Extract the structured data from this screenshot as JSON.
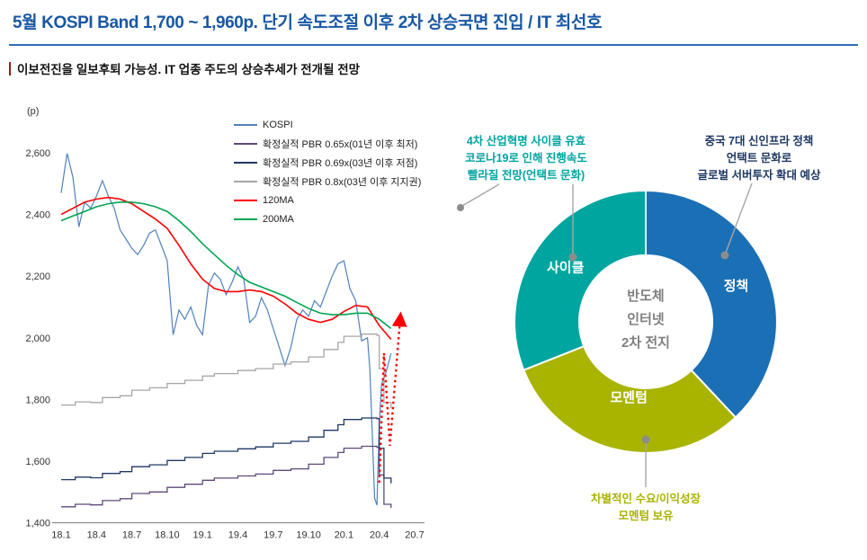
{
  "header": {
    "title": "5월 KOSPI Band 1,700 ~ 1,960p. 단기 속도조절 이후 2차 상승국면 진입 / IT 최선호",
    "subtitle": "이보전진을 일보후퇴 가능성. IT 업종 주도의 상승추세가 전개될 전망"
  },
  "colors": {
    "title_blue": "#1857A4",
    "rule_blue": "#2E6DB4",
    "accent_red": "#9E1B1B",
    "teal": "#00A5A0",
    "policy_blue": "#1B6FB5",
    "olive": "#A9B400",
    "navy": "#1F3864",
    "leader_dot_gray": "#8C8C8C"
  },
  "chart_data": [
    {
      "type": "line",
      "title": "",
      "xlabel": "",
      "ylabel": "(p)",
      "ylim": [
        1400,
        2600
      ],
      "yticks": [
        2600,
        2400,
        2200,
        2000,
        1800,
        1600,
        1400
      ],
      "xlim": [
        0,
        31
      ],
      "grid": false,
      "legend_position": "top-right",
      "xticks": [
        {
          "label": "18.1",
          "pos": 0
        },
        {
          "label": "18.4",
          "pos": 3
        },
        {
          "label": "18.7",
          "pos": 6
        },
        {
          "label": "18.10",
          "pos": 9
        },
        {
          "label": "19.1",
          "pos": 12
        },
        {
          "label": "19.4",
          "pos": 15
        },
        {
          "label": "19.7",
          "pos": 18
        },
        {
          "label": "19.10",
          "pos": 21
        },
        {
          "label": "20.1",
          "pos": 24
        },
        {
          "label": "20.4",
          "pos": 27
        },
        {
          "label": "20.7",
          "pos": 30
        }
      ],
      "series": [
        {
          "name": "KOSPI",
          "color": "#4F81BD",
          "width": 1.2,
          "step": false,
          "x": [
            0,
            0.5,
            1,
            1.5,
            2,
            2.5,
            3,
            3.5,
            4,
            4.5,
            5,
            5.5,
            6,
            6.5,
            7,
            7.5,
            8,
            8.5,
            9,
            9.5,
            10,
            10.5,
            11,
            11.5,
            12,
            12.5,
            13,
            13.5,
            14,
            14.5,
            15,
            15.5,
            16,
            16.5,
            17,
            17.5,
            18,
            18.5,
            19,
            19.5,
            20,
            20.5,
            21,
            21.5,
            22,
            22.5,
            23,
            23.5,
            24,
            24.5,
            25,
            25.5,
            26,
            26.2,
            26.4,
            26.6,
            26.8,
            27,
            27.2,
            27.5,
            27.8,
            28
          ],
          "y": [
            2470,
            2598,
            2520,
            2360,
            2440,
            2420,
            2460,
            2510,
            2460,
            2420,
            2350,
            2320,
            2290,
            2270,
            2300,
            2340,
            2350,
            2300,
            2250,
            2010,
            2090,
            2060,
            2100,
            2040,
            2010,
            2170,
            2210,
            2190,
            2140,
            2180,
            2230,
            2190,
            2050,
            2070,
            2130,
            2090,
            2030,
            1970,
            1910,
            1970,
            2060,
            2090,
            2070,
            2120,
            2100,
            2150,
            2200,
            2240,
            2250,
            2160,
            2120,
            1990,
            2000,
            1900,
            1700,
            1480,
            1457,
            1720,
            1850,
            1880,
            1920,
            1950
          ]
        },
        {
          "name": "확정실적 PBR 0.65x(01년 이후 최저)",
          "color": "#5F497A",
          "width": 1.3,
          "step": true,
          "x": [
            0,
            1.2,
            2.5,
            3.5,
            5,
            6,
            7.5,
            9,
            10.5,
            12,
            13,
            15,
            16.5,
            18,
            19.5,
            21,
            22.3,
            23.5,
            24,
            25.5,
            26.8,
            27,
            27.4,
            28
          ],
          "y": [
            1452,
            1460,
            1458,
            1472,
            1478,
            1495,
            1500,
            1515,
            1525,
            1538,
            1545,
            1552,
            1558,
            1570,
            1575,
            1590,
            1612,
            1628,
            1642,
            1648,
            1645,
            1555,
            1460,
            1448
          ]
        },
        {
          "name": "확정실적 PBR 0.69x(03년 이후 저점)",
          "color": "#1F3864",
          "width": 1.3,
          "step": true,
          "x": [
            0,
            1.2,
            2.5,
            3.5,
            5,
            6,
            7.5,
            9,
            10.5,
            12,
            13,
            15,
            16.5,
            18,
            19.5,
            21,
            22.3,
            23.5,
            24,
            25.5,
            26.8,
            27,
            27.4,
            28
          ],
          "y": [
            1540,
            1548,
            1546,
            1560,
            1566,
            1582,
            1588,
            1602,
            1612,
            1625,
            1632,
            1640,
            1646,
            1658,
            1664,
            1678,
            1700,
            1718,
            1735,
            1740,
            1738,
            1642,
            1545,
            1528
          ]
        },
        {
          "name": "확정실적 PBR 0.8x(03년 이후 지지권)",
          "color": "#A6A6A6",
          "width": 1.3,
          "step": true,
          "x": [
            0,
            1.2,
            2.5,
            3.5,
            5,
            6,
            7.5,
            9,
            10.5,
            12,
            13,
            15,
            16.5,
            18,
            19.5,
            21,
            22.3,
            23.5,
            24,
            25.5,
            26.8,
            27,
            27.4,
            28
          ],
          "y": [
            1782,
            1792,
            1790,
            1806,
            1812,
            1830,
            1838,
            1852,
            1862,
            1876,
            1884,
            1894,
            1900,
            1915,
            1922,
            1938,
            1962,
            1985,
            2005,
            2012,
            2008,
            1900,
            1790,
            1772
          ]
        },
        {
          "name": "120MA",
          "color": "#FF0000",
          "width": 1.6,
          "step": false,
          "x": [
            0,
            1,
            2,
            3,
            4,
            5,
            6,
            7,
            8,
            9,
            10,
            11,
            12,
            13,
            14,
            15,
            16,
            17,
            18,
            19,
            20,
            21,
            22,
            23,
            24,
            25,
            26,
            27,
            28
          ],
          "y": [
            2400,
            2420,
            2440,
            2450,
            2455,
            2450,
            2435,
            2410,
            2385,
            2355,
            2300,
            2240,
            2190,
            2160,
            2150,
            2150,
            2155,
            2150,
            2135,
            2110,
            2080,
            2060,
            2050,
            2060,
            2085,
            2105,
            2100,
            2040,
            1995
          ]
        },
        {
          "name": "200MA",
          "color": "#00A550",
          "width": 1.6,
          "step": false,
          "x": [
            0,
            1,
            2,
            3,
            4,
            5,
            6,
            7,
            8,
            9,
            10,
            11,
            12,
            13,
            14,
            15,
            16,
            17,
            18,
            19,
            20,
            21,
            22,
            23,
            24,
            25,
            26,
            27,
            28
          ],
          "y": [
            2380,
            2395,
            2410,
            2425,
            2435,
            2440,
            2440,
            2435,
            2425,
            2410,
            2380,
            2345,
            2305,
            2270,
            2235,
            2205,
            2180,
            2165,
            2150,
            2135,
            2115,
            2095,
            2080,
            2075,
            2075,
            2080,
            2080,
            2060,
            2030
          ]
        }
      ],
      "arrow": {
        "description": "red dotted rebound arrow",
        "color": "#FF0000",
        "points": [
          [
            27,
            1530
          ],
          [
            27.4,
            1950
          ],
          [
            27.9,
            1650
          ],
          [
            28.8,
            2075
          ]
        ]
      }
    },
    {
      "type": "pie",
      "style": "donut",
      "title": "",
      "segments": [
        {
          "key": "policy",
          "label": "정책",
          "value": 38,
          "color": "#1B6FB5",
          "label_r": 108
        },
        {
          "key": "momentum",
          "label": "모멘텀",
          "value": 31,
          "color": "#A9B400",
          "label_r": 86
        },
        {
          "key": "cycle",
          "label": "사이클",
          "value": 31,
          "color": "#00A5A0",
          "label_r": 108
        }
      ],
      "center_lines": [
        "반도체",
        "인터넷",
        "2차 전지"
      ]
    }
  ],
  "donut": {
    "annotations": {
      "cycle": {
        "lines": [
          "4차 산업혁명 사이클 유효",
          "코로나19로 인해 진행속도",
          "빨라질 전망(언택트 문화)"
        ],
        "color": "#00A5A0"
      },
      "policy": {
        "lines": [
          "중국 7대 신인프라 정책",
          "언택트 문화로",
          "글로벌 서버투자 확대 예상"
        ],
        "color": "#1F3864"
      },
      "momentum": {
        "lines": [
          "차별적인 수요/이익성장",
          "모멘텀 보유"
        ],
        "color": "#A9B400"
      }
    }
  }
}
